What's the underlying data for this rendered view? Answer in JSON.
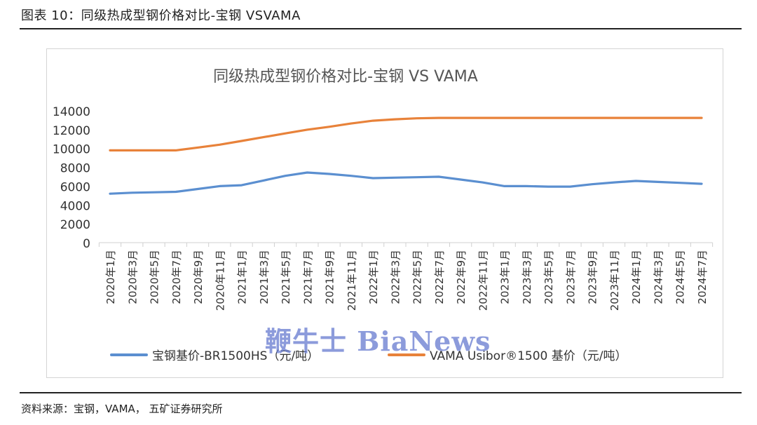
{
  "figure": {
    "caption": "图表 10：同级热成型钢价格对比-宝钢 VSVAMA",
    "source": "资料来源：宝钢，VAMA， 五矿证券研究所",
    "watermark": "鞭牛士 BiaNews"
  },
  "chart_data": {
    "type": "line",
    "title": "同级热成型钢价格对比-宝钢 VS VAMA",
    "categories": [
      "2020年1月",
      "2020年3月",
      "2020年5月",
      "2020年7月",
      "2020年9月",
      "2020年11月",
      "2021年1月",
      "2021年3月",
      "2021年5月",
      "2021年7月",
      "2021年9月",
      "2021年11月",
      "2022年1月",
      "2022年3月",
      "2022年5月",
      "2022年7月",
      "2022年9月",
      "2022年11月",
      "2023年1月",
      "2023年3月",
      "2023年5月",
      "2023年7月",
      "2023年9月",
      "2023年11月",
      "2024年1月",
      "2024年3月",
      "2024年5月",
      "2024年7月"
    ],
    "series": [
      {
        "name": "宝钢基价-BR1500HS（元/吨）",
        "color": "#5b8fd0",
        "values": [
          5200,
          5300,
          5350,
          5400,
          5700,
          6000,
          6100,
          6600,
          7100,
          7450,
          7300,
          7100,
          6850,
          6900,
          6950,
          7000,
          6700,
          6400,
          6000,
          6000,
          5950,
          5950,
          6200,
          6400,
          6550,
          6450,
          6350,
          6250
        ]
      },
      {
        "name": "VAMA Usibor®1500 基价（元/吨）",
        "color": "#e8823a",
        "values": [
          9800,
          9800,
          9800,
          9800,
          10100,
          10400,
          10800,
          11200,
          11600,
          12000,
          12300,
          12650,
          12950,
          13100,
          13200,
          13250,
          13250,
          13250,
          13250,
          13250,
          13250,
          13250,
          13250,
          13250,
          13250,
          13250,
          13250,
          13250
        ]
      }
    ],
    "ylim": [
      0,
      14000
    ],
    "yticks": [
      0,
      2000,
      4000,
      6000,
      8000,
      10000,
      12000,
      14000
    ],
    "grid": false,
    "legend_position": "bottom"
  }
}
